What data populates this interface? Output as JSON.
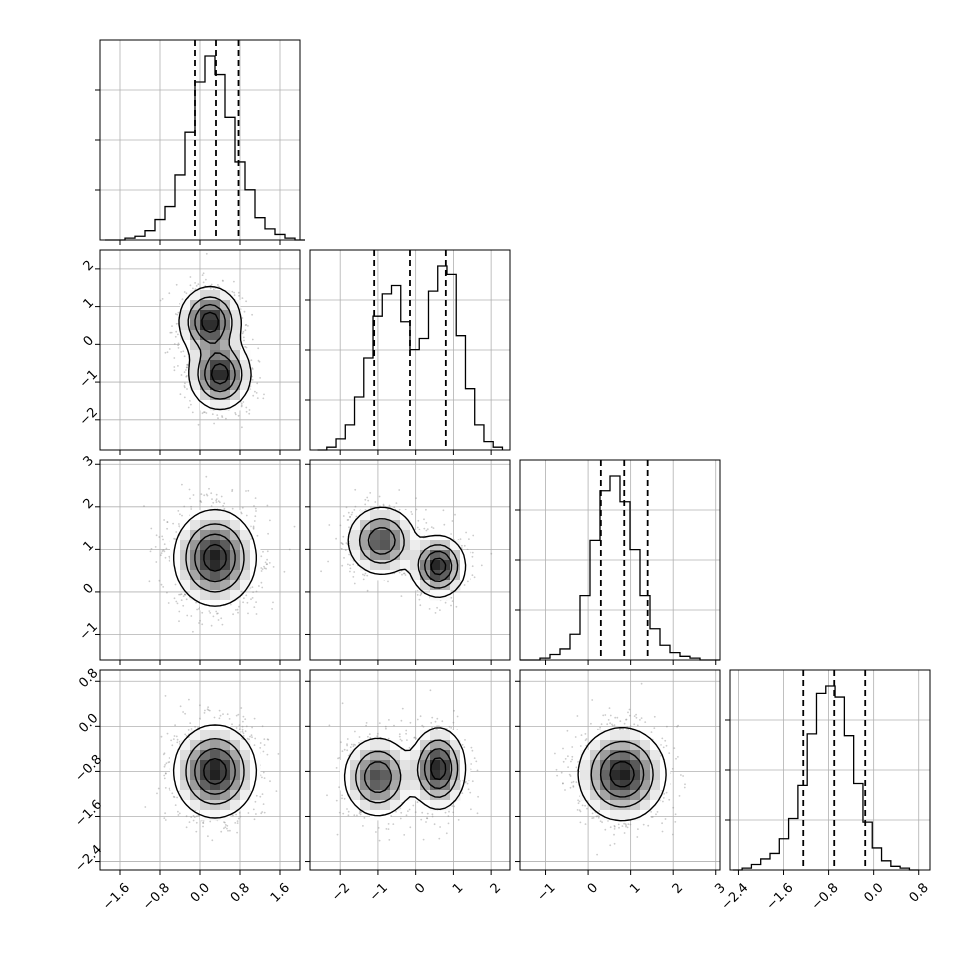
{
  "chart_data": {
    "type": "corner",
    "grid": true,
    "params": [
      {
        "range": [
          -2.0,
          2.0
        ],
        "ticks": [
          "−1.6",
          "−0.8",
          "0.0",
          "0.8",
          "1.6"
        ],
        "tick_values": [
          -1.6,
          -0.8,
          0.0,
          0.8,
          1.6
        ],
        "hist_range": [
          -1.9,
          2.1
        ],
        "hist": [
          0,
          0,
          1,
          2,
          5,
          11,
          18,
          35,
          58,
          85,
          99,
          89,
          66,
          42,
          27,
          12,
          6,
          3,
          1,
          0
        ],
        "quantiles": [
          -0.1,
          0.32,
          0.77
        ]
      },
      {
        "range": [
          -2.8,
          2.5
        ],
        "ticks": [
          "−2",
          "−1",
          "0",
          "1",
          "2"
        ],
        "tick_values": [
          -2,
          -1,
          0,
          1,
          2
        ],
        "hist_range": [
          -2.6,
          2.3
        ],
        "hist": [
          0,
          1,
          4,
          9,
          19,
          33,
          48,
          56,
          59,
          46,
          36,
          40,
          57,
          66,
          63,
          41,
          22,
          9,
          3,
          1
        ],
        "quantiles": [
          -1.1,
          -0.15,
          0.8
        ]
      },
      {
        "range": [
          -1.6,
          3.1
        ],
        "ticks": [
          "−1",
          "0",
          "1",
          "2",
          "3"
        ],
        "tick_values": [
          -1,
          0,
          1,
          2,
          3
        ],
        "hist_range": [
          -1.6,
          3.1
        ],
        "hist": [
          0,
          0,
          1,
          3,
          6,
          14,
          35,
          65,
          92,
          100,
          86,
          60,
          35,
          17,
          8,
          4,
          2,
          1,
          0,
          0
        ],
        "quantiles": [
          0.3,
          0.85,
          1.4
        ]
      },
      {
        "range": [
          -2.55,
          1.0
        ],
        "ticks": [
          "−2.4",
          "−1.6",
          "−0.8",
          "0.0",
          "0.8"
        ],
        "tick_values": [
          -2.4,
          -1.6,
          -0.8,
          0.0,
          0.8
        ],
        "hist_range": [
          -2.5,
          0.8
        ],
        "hist": [
          0,
          1,
          3,
          6,
          9,
          17,
          28,
          46,
          74,
          96,
          100,
          94,
          73,
          47,
          26,
          12,
          5,
          2,
          1,
          0
        ],
        "quantiles": [
          -1.25,
          -0.7,
          -0.15
        ]
      }
    ],
    "joint": [
      {
        "row": 1,
        "col": 0,
        "mixture": [
          {
            "mx": 0.2,
            "my": 0.6,
            "sx": 0.3,
            "sy": 0.45,
            "w": 0.5
          },
          {
            "mx": 0.4,
            "my": -0.8,
            "sx": 0.3,
            "sy": 0.45,
            "w": 0.5
          }
        ]
      },
      {
        "row": 2,
        "col": 0,
        "mixture": [
          {
            "mx": 0.3,
            "my": 0.8,
            "sx": 0.4,
            "sy": 0.55,
            "w": 1.0
          }
        ]
      },
      {
        "row": 2,
        "col": 1,
        "mixture": [
          {
            "mx": -0.9,
            "my": 1.2,
            "sx": 0.45,
            "sy": 0.4,
            "w": 0.45
          },
          {
            "mx": 0.6,
            "my": 0.6,
            "sx": 0.35,
            "sy": 0.35,
            "w": 0.55
          }
        ]
      },
      {
        "row": 3,
        "col": 0,
        "mixture": [
          {
            "mx": 0.3,
            "my": -0.8,
            "sx": 0.4,
            "sy": 0.4,
            "w": 1.0
          }
        ]
      },
      {
        "row": 3,
        "col": 1,
        "mixture": [
          {
            "mx": -1.0,
            "my": -0.9,
            "sx": 0.45,
            "sy": 0.35,
            "w": 0.45
          },
          {
            "mx": 0.6,
            "my": -0.75,
            "sx": 0.35,
            "sy": 0.35,
            "w": 0.55
          }
        ]
      },
      {
        "row": 3,
        "col": 2,
        "mixture": [
          {
            "mx": 0.8,
            "my": -0.85,
            "sx": 0.5,
            "sy": 0.4,
            "w": 1.0
          }
        ]
      }
    ],
    "contour_levels": [
      0.12,
      0.35,
      0.6,
      0.85
    ],
    "colors": {
      "line": "#000000",
      "grid": "#b0b0b0",
      "scatter": "#8c8c8c",
      "density_dark": "#1a1a1a",
      "background": "#ffffff"
    }
  }
}
